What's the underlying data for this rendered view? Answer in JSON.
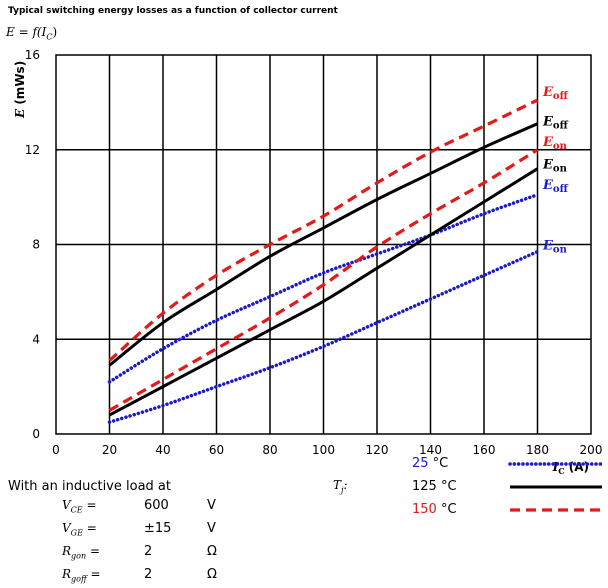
{
  "title": "Typical switching energy losses as a function of collector current",
  "subtitle_prefix": "E = f(I",
  "subtitle_sub": "C",
  "subtitle_suffix": ")",
  "conditions": {
    "heading": "With an inductive load at",
    "rows": [
      {
        "label": "V",
        "sub": "CE",
        "value": "600",
        "unit": "V"
      },
      {
        "label": "V",
        "sub": "GE",
        "value": "±15",
        "unit": "V"
      },
      {
        "label": "R",
        "sub": "gon",
        "value": "2",
        "unit": "Ω"
      },
      {
        "label": "R",
        "sub": "goff",
        "value": "2",
        "unit": "Ω"
      }
    ],
    "tj_label": "T",
    "tj_sub": "j",
    "temperatures": [
      {
        "value": "25",
        "unit": "°C",
        "color": "#1a1acc",
        "style": "dotted"
      },
      {
        "value": "125",
        "unit": "°C",
        "color": "#000000",
        "style": "solid"
      },
      {
        "value": "150",
        "unit": "°C",
        "color": "#e61919",
        "style": "dashed"
      }
    ]
  },
  "chart_data": {
    "type": "line",
    "xlabel": "I",
    "xlabel_sub": "C",
    "xlabel_unit": "(A)",
    "ylabel": "E",
    "ylabel_unit": "(mWs)",
    "xlim": [
      0,
      200
    ],
    "ylim": [
      0,
      16
    ],
    "xticks": [
      0,
      20,
      40,
      60,
      80,
      100,
      120,
      140,
      160,
      180,
      200
    ],
    "yticks": [
      0,
      4,
      8,
      12,
      16
    ],
    "grid": true,
    "x": [
      20,
      40,
      60,
      80,
      100,
      120,
      140,
      160,
      180
    ],
    "series": [
      {
        "name": "E",
        "sub": "off",
        "temp": "150",
        "color": "#e61919",
        "style": "dashed",
        "values": [
          3.1,
          5.1,
          6.7,
          8.0,
          9.2,
          10.6,
          11.9,
          13.0,
          14.1
        ]
      },
      {
        "name": "E",
        "sub": "off",
        "temp": "125",
        "color": "#000000",
        "style": "solid",
        "values": [
          2.9,
          4.7,
          6.1,
          7.5,
          8.7,
          9.9,
          11.0,
          12.1,
          13.1
        ]
      },
      {
        "name": "E",
        "sub": "on",
        "temp": "150",
        "color": "#e61919",
        "style": "dashed",
        "values": [
          1.0,
          2.3,
          3.6,
          4.9,
          6.3,
          7.9,
          9.3,
          10.6,
          12.0
        ]
      },
      {
        "name": "E",
        "sub": "on",
        "temp": "125",
        "color": "#000000",
        "style": "solid",
        "values": [
          0.8,
          2.0,
          3.2,
          4.4,
          5.6,
          7.0,
          8.4,
          9.8,
          11.2
        ]
      },
      {
        "name": "E",
        "sub": "off",
        "temp": "25",
        "color": "#1a1acc",
        "style": "dotted",
        "values": [
          2.2,
          3.6,
          4.8,
          5.8,
          6.8,
          7.6,
          8.4,
          9.3,
          10.1
        ]
      },
      {
        "name": "E",
        "sub": "on",
        "temp": "25",
        "color": "#1a1acc",
        "style": "dotted",
        "values": [
          0.5,
          1.2,
          2.0,
          2.8,
          3.7,
          4.7,
          5.7,
          6.7,
          7.7
        ]
      }
    ],
    "curve_labels": [
      {
        "text": "E",
        "sub": "off",
        "color": "#e61919",
        "series": 0
      },
      {
        "text": "E",
        "sub": "off",
        "color": "#000000",
        "series": 1
      },
      {
        "text": "E",
        "sub": "on",
        "color": "#e61919",
        "series": 2
      },
      {
        "text": "E",
        "sub": "on",
        "color": "#000000",
        "series": 3
      },
      {
        "text": "E",
        "sub": "off",
        "color": "#1a1acc",
        "series": 4
      },
      {
        "text": "E",
        "sub": "on",
        "color": "#1a1acc",
        "series": 5
      }
    ]
  }
}
